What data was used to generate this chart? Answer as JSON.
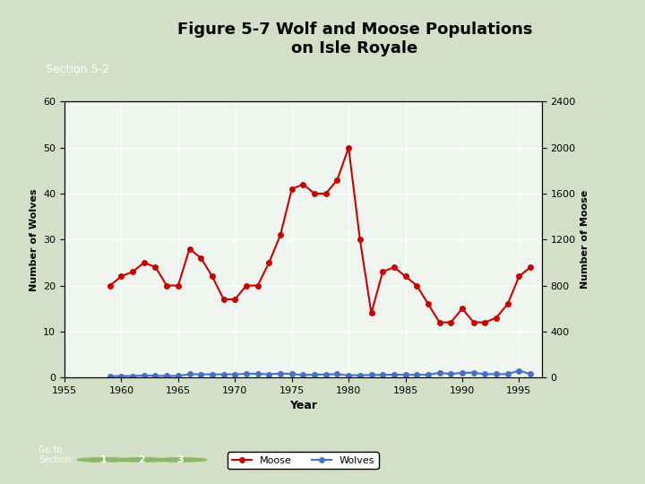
{
  "title": "Figure 5-7 Wolf and Moose Populations\non Isle Royale",
  "section_label": "Section 5-2",
  "xlabel": "Year",
  "ylabel_left": "Number of Wolves",
  "ylabel_right": "Number of Moose",
  "wolf_color": "#cc0000",
  "moose_color": "#4472c4",
  "background_color": "#e8efe8",
  "plot_bg_color": "#f0f5f0",
  "years": [
    1959,
    1960,
    1961,
    1962,
    1963,
    1964,
    1965,
    1966,
    1967,
    1968,
    1969,
    1970,
    1971,
    1972,
    1973,
    1974,
    1975,
    1976,
    1977,
    1978,
    1979,
    1980,
    1981,
    1982,
    1983,
    1984,
    1985,
    1986,
    1987,
    1988,
    1989,
    1990,
    1991,
    1992,
    1993,
    1994,
    1995,
    1996
  ],
  "wolves": [
    20,
    22,
    23,
    25,
    24,
    20,
    20,
    28,
    26,
    22,
    17,
    17,
    20,
    20,
    25,
    31,
    41,
    42,
    40,
    40,
    43,
    50,
    30,
    14,
    23,
    24,
    22,
    20,
    16,
    12,
    12,
    15,
    12,
    12,
    13,
    16,
    22,
    24
  ],
  "moose": [
    12,
    13,
    13,
    18,
    15,
    14,
    14,
    29,
    28,
    28,
    28,
    28,
    33,
    33,
    28,
    35,
    31,
    22,
    25,
    27,
    29,
    19,
    21,
    22,
    23,
    25,
    23,
    24,
    24,
    41,
    31,
    41,
    42,
    29,
    30,
    30,
    60,
    30
  ],
  "wolf_ylim": [
    0,
    60
  ],
  "moose_ylim": [
    0,
    2400
  ],
  "wolf_yticks": [
    0,
    10,
    20,
    30,
    40,
    50,
    60
  ],
  "moose_yticks": [
    0,
    400,
    800,
    1200,
    1600,
    2000,
    2400
  ],
  "xlim": [
    1955,
    1997
  ],
  "xticks": [
    1955,
    1960,
    1965,
    1970,
    1975,
    1980,
    1985,
    1990,
    1995
  ]
}
